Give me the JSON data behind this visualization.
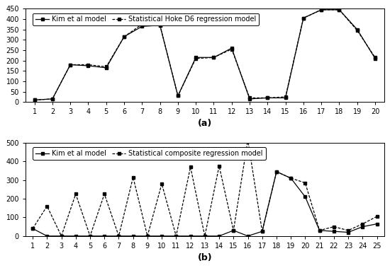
{
  "panel_a": {
    "x": [
      1,
      2,
      3,
      4,
      5,
      6,
      7,
      8,
      9,
      10,
      11,
      12,
      13,
      14,
      15,
      16,
      17,
      18,
      19,
      20
    ],
    "kim": [
      10,
      15,
      180,
      175,
      165,
      315,
      365,
      370,
      30,
      215,
      215,
      260,
      15,
      20,
      20,
      405,
      445,
      445,
      350,
      210
    ],
    "stat": [
      10,
      15,
      180,
      180,
      170,
      315,
      375,
      370,
      30,
      210,
      215,
      255,
      20,
      20,
      25,
      405,
      445,
      445,
      345,
      215
    ],
    "ylim": [
      0,
      450
    ],
    "yticks": [
      0,
      50,
      100,
      150,
      200,
      250,
      300,
      350,
      400,
      450
    ],
    "legend1": "Kim et al model",
    "legend2": "Statistical Hoke D6 regression model",
    "label": "(a)"
  },
  "panel_b": {
    "x": [
      1,
      2,
      3,
      4,
      5,
      6,
      7,
      8,
      9,
      10,
      11,
      12,
      13,
      14,
      15,
      16,
      17,
      18,
      19,
      20,
      21,
      22,
      23,
      24,
      25
    ],
    "kim": [
      40,
      0,
      0,
      0,
      0,
      0,
      0,
      0,
      0,
      0,
      0,
      0,
      0,
      0,
      30,
      0,
      25,
      345,
      310,
      210,
      30,
      25,
      20,
      50,
      65
    ],
    "stat": [
      40,
      160,
      0,
      225,
      0,
      225,
      0,
      315,
      0,
      280,
      0,
      370,
      0,
      375,
      30,
      515,
      25,
      345,
      310,
      285,
      30,
      50,
      30,
      65,
      105
    ],
    "ylim": [
      0,
      500
    ],
    "yticks": [
      0,
      100,
      200,
      300,
      400,
      500
    ],
    "legend1": "Kim et al model",
    "legend2": "Statistical composite regression model",
    "label": "(b)"
  },
  "line_color": "#000000",
  "bg_color": "#ffffff",
  "fontsize_label": 9,
  "fontsize_axis": 7,
  "fontsize_legend": 7
}
